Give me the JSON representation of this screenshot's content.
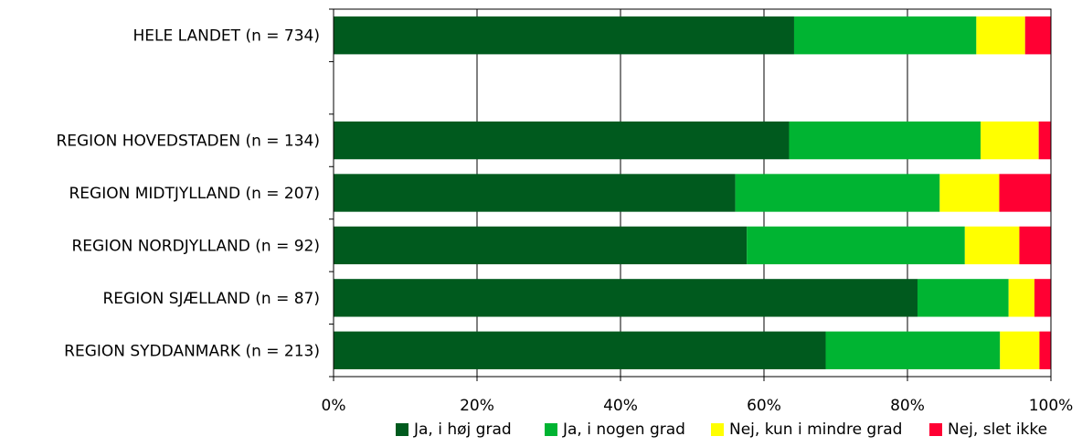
{
  "chart_data": {
    "type": "bar",
    "orientation": "horizontal",
    "stacked": true,
    "percent_stacked": true,
    "categories": [
      "HELE LANDET (n = 734)",
      "",
      "REGION HOVEDSTADEN (n = 134)",
      "REGION MIDTJYLLAND (n = 207)",
      "REGION NORDJYLLAND (n = 92)",
      "REGION SJÆLLAND (n = 87)",
      "REGION SYDDANMARK (n = 213)"
    ],
    "series": [
      {
        "name": "Ja, i høj grad",
        "color": "#005A1E",
        "values": [
          64.2,
          null,
          63.5,
          56.0,
          57.6,
          81.4,
          68.6
        ]
      },
      {
        "name": "Ja, i nogen grad",
        "color": "#00B432",
        "values": [
          25.4,
          null,
          26.7,
          28.5,
          30.4,
          12.7,
          24.3
        ]
      },
      {
        "name": "Nej, kun i mindre grad",
        "color": "#FFFF00",
        "values": [
          6.8,
          null,
          8.1,
          8.3,
          7.6,
          3.6,
          5.5
        ]
      },
      {
        "name": "Nej, slet ikke",
        "color": "#FF0033",
        "values": [
          3.6,
          null,
          1.7,
          7.2,
          4.4,
          2.3,
          1.6
        ]
      }
    ],
    "x_ticks": [
      "0%",
      "20%",
      "40%",
      "60%",
      "80%",
      "100%"
    ],
    "xlim": [
      0,
      100
    ],
    "grid": true,
    "legend_position": "bottom"
  }
}
